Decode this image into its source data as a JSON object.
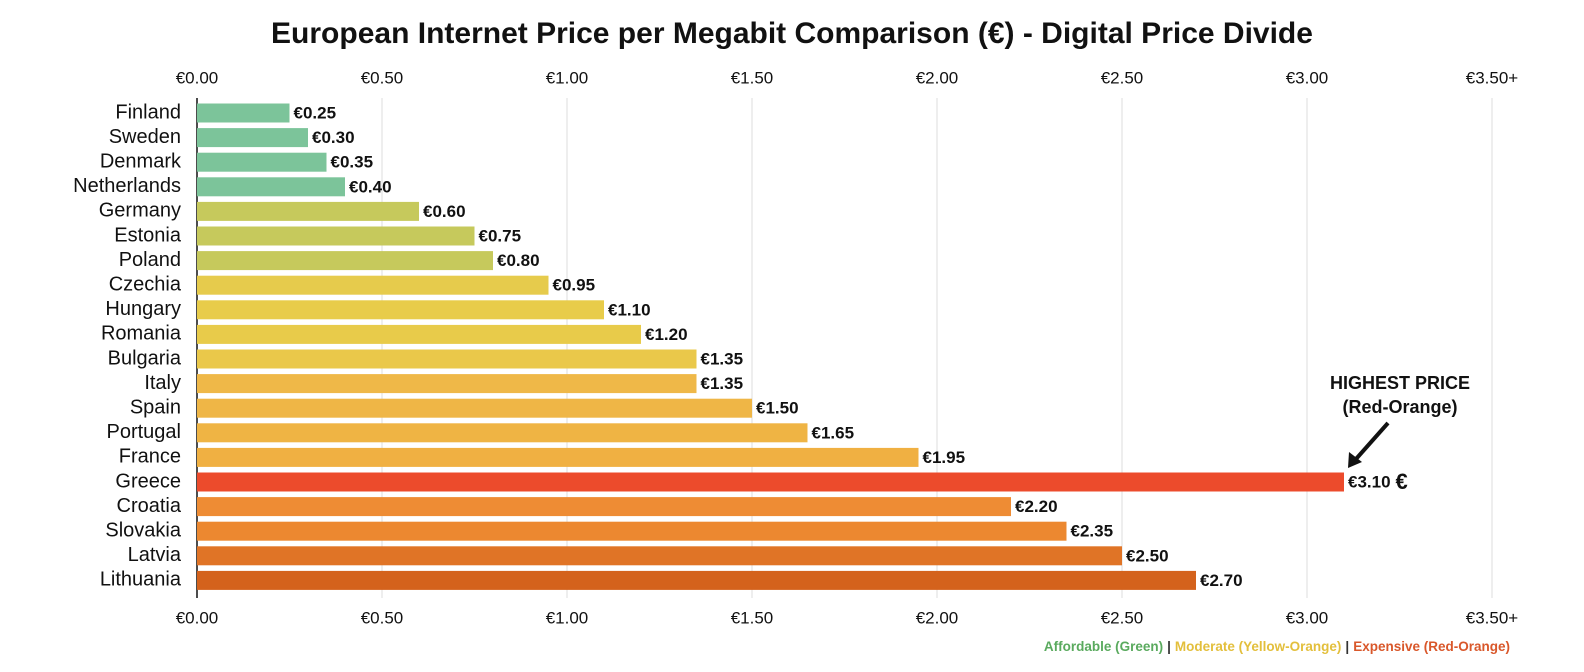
{
  "chart_data": {
    "type": "bar",
    "orientation": "horizontal",
    "title": "European Internet Price per Megabit Comparison (€) - Digital Price Divide",
    "categories": [
      "Finland",
      "Sweden",
      "Denmark",
      "Netherlands",
      "Germany",
      "Estonia",
      "Poland",
      "Czechia",
      "Hungary",
      "Romania",
      "Bulgaria",
      "Italy",
      "Spain",
      "Portugal",
      "France",
      "Greece",
      "Croatia",
      "Slovakia",
      "Latvia",
      "Lithuania"
    ],
    "values": [
      0.25,
      0.3,
      0.35,
      0.4,
      0.6,
      0.75,
      0.8,
      0.95,
      1.1,
      1.2,
      1.35,
      1.35,
      1.5,
      1.65,
      1.95,
      3.1,
      2.2,
      2.35,
      2.5,
      2.7
    ],
    "value_labels": [
      "€0.25",
      "€0.30",
      "€0.35",
      "€0.40",
      "€0.60",
      "€0.75",
      "€0.80",
      "€0.95",
      "€1.10",
      "€1.20",
      "€1.35",
      "€1.35",
      "€1.50",
      "€1.65",
      "€1.95",
      "€3.10",
      "€2.20",
      "€2.35",
      "€2.50",
      "€2.70"
    ],
    "colors": [
      "#7cc49a",
      "#7cc49a",
      "#7cc49a",
      "#7cc49a",
      "#c6c95c",
      "#c6c95c",
      "#c6c95c",
      "#e6cb4c",
      "#e8cc4a",
      "#e8cb4a",
      "#eac84a",
      "#efb848",
      "#efb646",
      "#efb444",
      "#f0b042",
      "#ec4b2c",
      "#ee8c34",
      "#ec8830",
      "#e07426",
      "#d4621c"
    ],
    "xlim": [
      0,
      3.5
    ],
    "xticks": [
      {
        "value": 0,
        "label": "€0.00"
      },
      {
        "value": 0.5,
        "label": "€0.50"
      },
      {
        "value": 1,
        "label": "€1.00"
      },
      {
        "value": 1.5,
        "label": "€1.50"
      },
      {
        "value": 2,
        "label": "€2.00"
      },
      {
        "value": 2.5,
        "label": "€2.50"
      },
      {
        "value": 3,
        "label": "€3.00"
      },
      {
        "value": 3.5,
        "label": "€3.50+"
      }
    ],
    "grid": true,
    "annotation": {
      "lines": [
        "HIGHEST PRICE",
        "(Red-Orange)"
      ],
      "category_index": 15,
      "marker": "€",
      "marker_color": "#ec5a2c"
    },
    "legend": {
      "position": "bottom-right",
      "separator": "|",
      "items": [
        {
          "name": "Affordable (Green)",
          "color": "#5aaa5e"
        },
        {
          "name": "Moderate (Yellow-Orange)",
          "color": "#e3bf3c"
        },
        {
          "name": "Expensive (Red-Orange)",
          "color": "#d9572a"
        }
      ]
    }
  }
}
